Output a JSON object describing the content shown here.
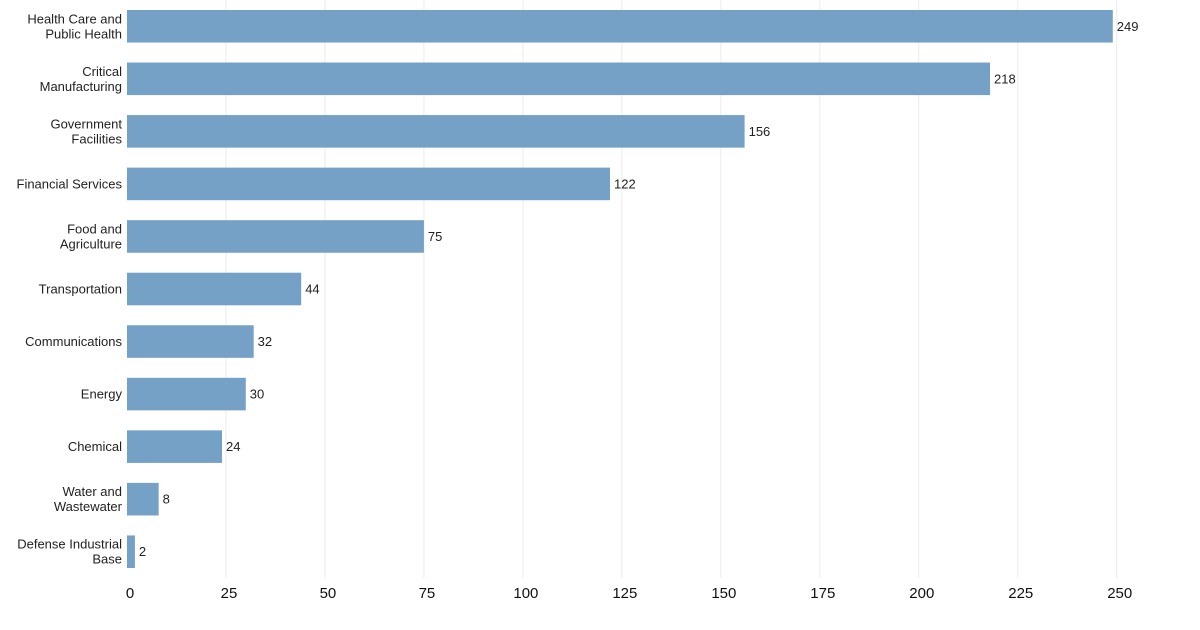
{
  "chart_data": {
    "type": "bar",
    "orientation": "horizontal",
    "title": "",
    "xlabel": "",
    "ylabel": "",
    "categories": [
      [
        "Health Care and",
        "Public Health"
      ],
      [
        "Critical",
        "Manufacturing"
      ],
      [
        "Government",
        "Facilities"
      ],
      [
        "Financial Services"
      ],
      [
        "Food and",
        "Agriculture"
      ],
      [
        "Transportation"
      ],
      [
        "Communications"
      ],
      [
        "Energy"
      ],
      [
        "Chemical"
      ],
      [
        "Water and",
        "Wastewater"
      ],
      [
        "Defense Industrial",
        "Base"
      ]
    ],
    "values": [
      249,
      218,
      156,
      122,
      75,
      44,
      32,
      30,
      24,
      8,
      2
    ],
    "xlim": [
      0,
      268
    ],
    "xticks": [
      0,
      25,
      50,
      75,
      100,
      125,
      150,
      175,
      200,
      225,
      250
    ],
    "grid": "vertical",
    "legend": "none",
    "colors": {
      "bar": "#75a1c7",
      "text": "#222222",
      "grid": "#ececec"
    }
  }
}
